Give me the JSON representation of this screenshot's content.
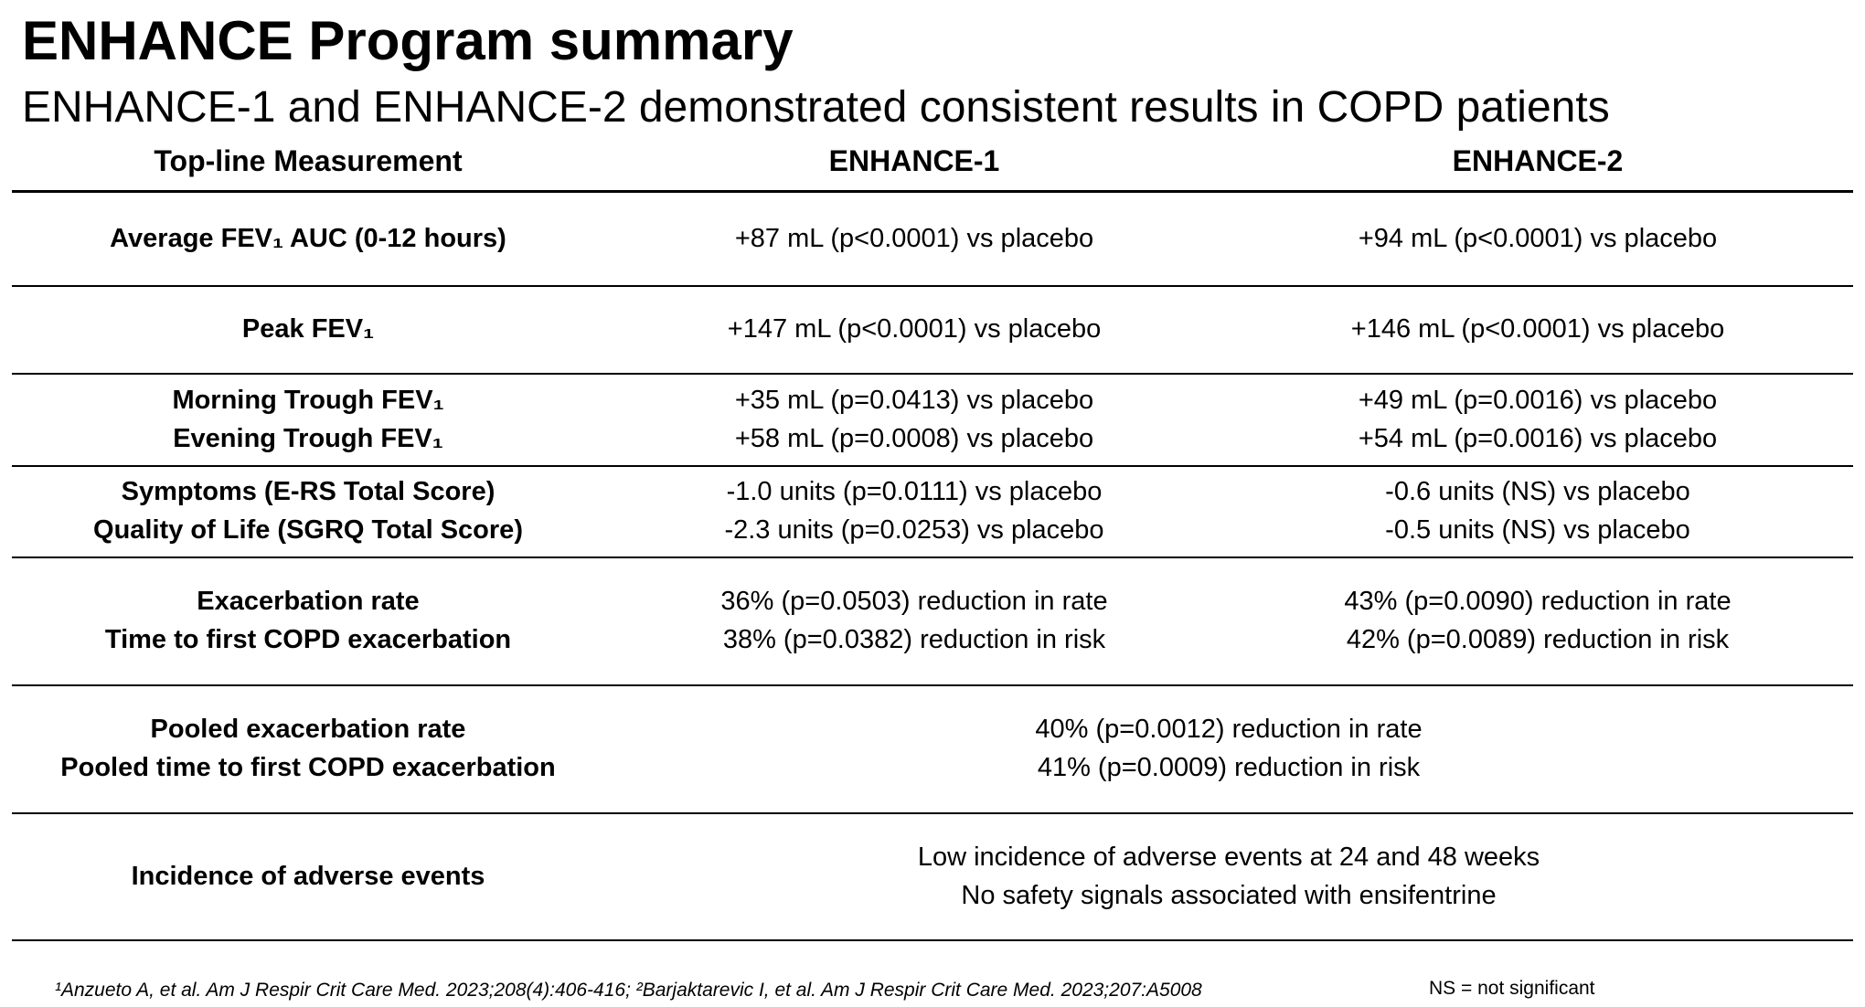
{
  "header": {
    "title": "ENHANCE Program summary",
    "subtitle": "ENHANCE-1 and ENHANCE-2 demonstrated consistent results in COPD patients"
  },
  "table": {
    "columns": [
      "Top-line Measurement",
      "ENHANCE-1",
      "ENHANCE-2"
    ],
    "rows": [
      {
        "label": [
          "Average FEV₁ AUC (0-12 hours)"
        ],
        "enhance_1": [
          "+87 mL (p<0.0001) vs placebo"
        ],
        "enhance_2": [
          "+94 mL (p<0.0001) vs placebo"
        ]
      },
      {
        "label": [
          "Peak FEV₁"
        ],
        "enhance_1": [
          "+147 mL (p<0.0001) vs placebo"
        ],
        "enhance_2": [
          "+146 mL (p<0.0001) vs placebo"
        ]
      },
      {
        "label": [
          "Morning Trough FEV₁",
          "Evening Trough FEV₁"
        ],
        "enhance_1": [
          "+35 mL (p=0.0413) vs placebo",
          "+58 mL (p=0.0008) vs placebo"
        ],
        "enhance_2": [
          "+49 mL (p=0.0016) vs placebo",
          "+54 mL (p=0.0016) vs placebo"
        ]
      },
      {
        "label": [
          "Symptoms (E-RS Total Score)",
          "Quality of Life (SGRQ Total Score)"
        ],
        "enhance_1": [
          "-1.0 units (p=0.0111) vs placebo",
          "-2.3 units (p=0.0253) vs placebo"
        ],
        "enhance_2": [
          "-0.6 units (NS) vs placebo",
          "-0.5 units (NS) vs placebo"
        ]
      },
      {
        "label": [
          "Exacerbation rate",
          "Time to first COPD exacerbation"
        ],
        "enhance_1": [
          "36% (p=0.0503) reduction in rate",
          "38% (p=0.0382) reduction in risk"
        ],
        "enhance_2": [
          "43% (p=0.0090) reduction in rate",
          "42% (p=0.0089) reduction in risk"
        ]
      },
      {
        "label": [
          "Pooled exacerbation rate",
          "Pooled time to first COPD exacerbation"
        ],
        "combined": [
          "40% (p=0.0012) reduction in rate",
          "41% (p=0.0009) reduction in risk"
        ]
      },
      {
        "label": [
          "Incidence of adverse events"
        ],
        "combined": [
          "Low incidence of adverse events at 24 and 48 weeks",
          "No safety signals associated with ensifentrine"
        ]
      }
    ]
  },
  "footer": {
    "references": "¹Anzueto A, et al. Am J  Respir Crit Care Med. 2023;208(4):406-416; ²Barjaktarevic I, et al. Am J Respir Crit Care Med. 2023;207:A5008",
    "note": "NS = not significant"
  }
}
